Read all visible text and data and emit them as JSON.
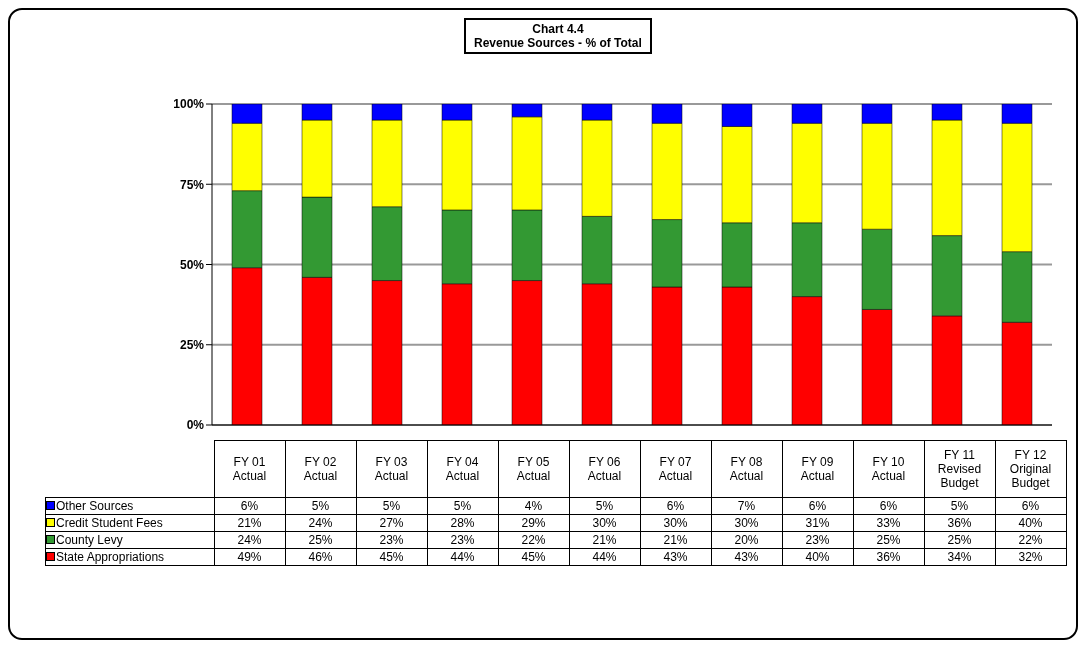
{
  "chart_data": {
    "type": "bar",
    "title": "Chart 4.4",
    "subtitle": "Revenue Sources - % of Total",
    "stacked": true,
    "categories": [
      "FY 01 Actual",
      "FY 02 Actual",
      "FY 03 Actual",
      "FY 04 Actual",
      "FY 05 Actual",
      "FY 06 Actual",
      "FY 07 Actual",
      "FY 08 Actual",
      "FY 09 Actual",
      "FY 10 Actual",
      "FY 11 Revised Budget",
      "FY 12 Original Budget"
    ],
    "series": [
      {
        "name": "State Appropriations",
        "color": "#ff0000",
        "values": [
          49,
          46,
          45,
          44,
          45,
          44,
          43,
          43,
          40,
          36,
          34,
          32
        ],
        "value_labels": [
          "49%",
          "46%",
          "45%",
          "44%",
          "45%",
          "44%",
          "43%",
          "43%",
          "40%",
          "36%",
          "34%",
          "32%"
        ]
      },
      {
        "name": "County Levy",
        "color": "#339933",
        "values": [
          24,
          25,
          23,
          23,
          22,
          21,
          21,
          20,
          23,
          25,
          25,
          22
        ],
        "value_labels": [
          "24%",
          "25%",
          "23%",
          "23%",
          "22%",
          "21%",
          "21%",
          "20%",
          "23%",
          "25%",
          "25%",
          "22%"
        ]
      },
      {
        "name": "Credit Student Fees",
        "color": "#ffff00",
        "values": [
          21,
          24,
          27,
          28,
          29,
          30,
          30,
          30,
          31,
          33,
          36,
          40
        ],
        "value_labels": [
          "21%",
          "24%",
          "27%",
          "28%",
          "29%",
          "30%",
          "30%",
          "30%",
          "31%",
          "33%",
          "36%",
          "40%"
        ]
      },
      {
        "name": "Other Sources",
        "color": "#0000ff",
        "values": [
          6,
          5,
          5,
          5,
          4,
          5,
          6,
          7,
          6,
          6,
          5,
          6
        ],
        "value_labels": [
          "6%",
          "5%",
          "5%",
          "5%",
          "4%",
          "5%",
          "6%",
          "7%",
          "6%",
          "6%",
          "5%",
          "6%"
        ]
      }
    ],
    "ylim": [
      0,
      100
    ],
    "yticks": [
      {
        "value": 0,
        "label": "0%"
      },
      {
        "value": 25,
        "label": "25%"
      },
      {
        "value": 50,
        "label": "50%"
      },
      {
        "value": 75,
        "label": "75%"
      },
      {
        "value": 100,
        "label": "100%"
      }
    ],
    "grid": "y",
    "legend": "bottom"
  }
}
